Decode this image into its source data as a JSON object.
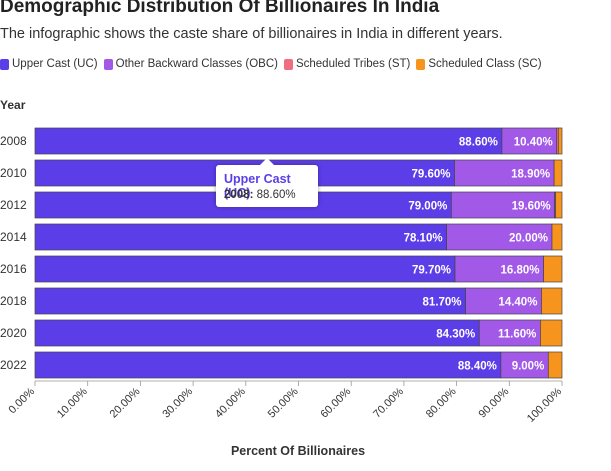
{
  "header": {
    "title": "Demographic Distribution Of Billionaires In India",
    "subtitle": "The infographic shows the caste share of billionaires in India in different years."
  },
  "tooltip": {
    "series": "Upper Cast (UC)",
    "year": "2008:",
    "value": "88.60%"
  },
  "chart_data": {
    "type": "bar",
    "orientation": "horizontal",
    "stacked": true,
    "title": "Demographic Distribution Of Billionaires In India",
    "subtitle": "The infographic shows the caste share of billionaires in India in different years.",
    "ylabel": "Year",
    "xlabel": "Percent Of Billionaires",
    "xlim": [
      0,
      100
    ],
    "x_ticks": [
      "0.00%",
      "10.00%",
      "20.00%",
      "30.00%",
      "40.00%",
      "50.00%",
      "60.00%",
      "70.00%",
      "80.00%",
      "90.00%",
      "100.00%"
    ],
    "legend_position": "top-left",
    "grid": false,
    "categories": [
      "2008",
      "2010",
      "2012",
      "2014",
      "2016",
      "2018",
      "2020",
      "2022"
    ],
    "series": [
      {
        "name": "Upper Cast (UC)",
        "color": "#5b3ee8",
        "values": [
          88.6,
          79.6,
          79.0,
          78.1,
          79.7,
          81.7,
          84.3,
          88.4
        ]
      },
      {
        "name": "Other Backward Classes (OBC)",
        "color": "#a259e8",
        "values": [
          10.4,
          18.9,
          19.6,
          20.0,
          16.8,
          14.4,
          11.6,
          9.0
        ]
      },
      {
        "name": "Scheduled Tribes (ST)",
        "color": "#f06c80",
        "values": [
          0.3,
          0.0,
          0.2,
          0.0,
          0.0,
          0.0,
          0.0,
          0.0
        ]
      },
      {
        "name": "Scheduled Class (SC)",
        "color": "#f7941d",
        "values": [
          0.7,
          1.5,
          1.2,
          1.9,
          3.5,
          3.9,
          4.1,
          2.6
        ]
      }
    ],
    "data_labels": {
      "Upper Cast (UC)": [
        "88.60%",
        "79.60%",
        "79.00%",
        "78.10%",
        "79.70%",
        "81.70%",
        "84.30%",
        "88.40%"
      ],
      "Other Backward Classes (OBC)": [
        "10.40%",
        "18.90%",
        "19.60%",
        "20.00%",
        "16.80%",
        "14.40%",
        "11.60%",
        "9.00%"
      ]
    }
  }
}
